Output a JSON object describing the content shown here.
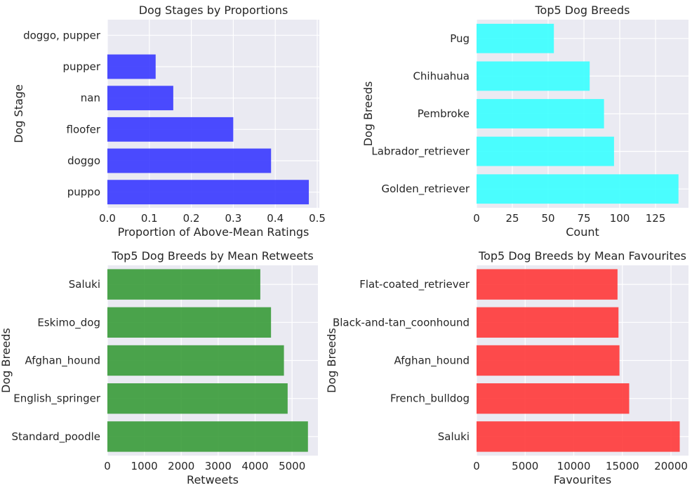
{
  "chart_data": [
    {
      "type": "bar",
      "orientation": "horizontal",
      "title": "Dog Stages by Proportions",
      "xlabel": "Proportion of Above-Mean Ratings",
      "ylabel": "Dog Stage",
      "categories": [
        "puppo",
        "doggo",
        "floofer",
        "nan",
        "pupper",
        "doggo, pupper"
      ],
      "values": [
        0.48,
        0.39,
        0.3,
        0.157,
        0.115,
        0.0
      ],
      "xlim": [
        0,
        0.505
      ],
      "xticks": [
        "0.0",
        "0.1",
        "0.2",
        "0.3",
        "0.4",
        "0.5"
      ],
      "xtick_values": [
        0,
        0.1,
        0.2,
        0.3,
        0.4,
        0.5
      ],
      "color": "#3333ff",
      "grid": true
    },
    {
      "type": "bar",
      "orientation": "horizontal",
      "title": "Top5 Dog Breeds",
      "xlabel": "Count",
      "ylabel": "Dog Breeds",
      "categories": [
        "Golden_retriever",
        "Labrador_retriever",
        "Pembroke",
        "Chihuahua",
        "Pug"
      ],
      "values": [
        141,
        96,
        89,
        79,
        54
      ],
      "xlim": [
        0,
        148
      ],
      "xticks": [
        "0",
        "25",
        "50",
        "75",
        "100",
        "125"
      ],
      "xtick_values": [
        0,
        25,
        50,
        75,
        100,
        125
      ],
      "color": "#33ffff",
      "grid": true
    },
    {
      "type": "bar",
      "orientation": "horizontal",
      "title": "Top5 Dog Breeds by Mean Retweets",
      "xlabel": "Retweets",
      "ylabel": "Dog Breeds",
      "categories": [
        "Standard_poodle",
        "English_springer",
        "Afghan_hound",
        "Eskimo_dog",
        "Saluki"
      ],
      "values": [
        5430,
        4880,
        4780,
        4430,
        4140
      ],
      "xlim": [
        0,
        5700
      ],
      "xticks": [
        "0",
        "1000",
        "2000",
        "3000",
        "4000",
        "5000"
      ],
      "xtick_values": [
        0,
        1000,
        2000,
        3000,
        4000,
        5000
      ],
      "color": "#339933",
      "grid": true
    },
    {
      "type": "bar",
      "orientation": "horizontal",
      "title": "Top5 Dog Breeds by Mean Favourites",
      "xlabel": "Favourites",
      "ylabel": "Dog Breeds",
      "categories": [
        "Saluki",
        "French_bulldog",
        "Afghan_hound",
        "Black-and-tan_coonhound",
        "Flat-coated_retriever"
      ],
      "values": [
        20900,
        15700,
        14700,
        14600,
        14500
      ],
      "xlim": [
        0,
        21800
      ],
      "xticks": [
        "0",
        "5000",
        "10000",
        "15000",
        "20000"
      ],
      "xtick_values": [
        0,
        5000,
        10000,
        15000,
        20000
      ],
      "color": "#ff3333",
      "grid": true
    }
  ]
}
